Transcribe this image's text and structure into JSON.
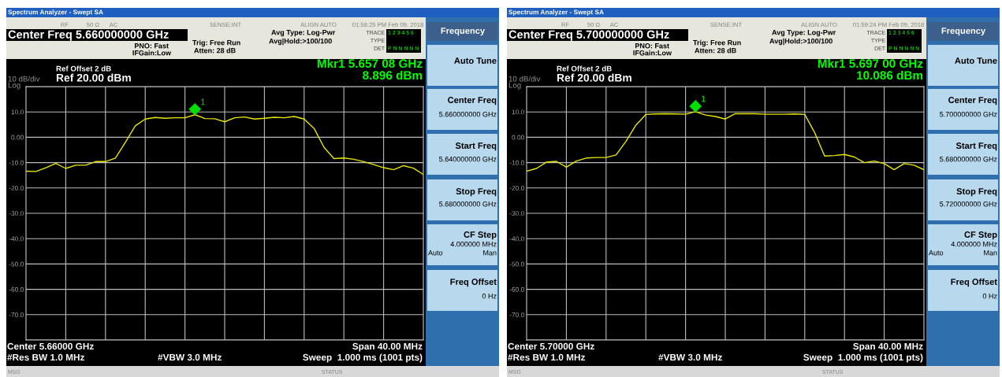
{
  "chart_data": [
    {
      "type": "line",
      "title": "Spectrum Analyzer - Swept SA",
      "categories": [
        null,
        null,
        null,
        null,
        null,
        null,
        null,
        null,
        null,
        null,
        null,
        null,
        null,
        null,
        null,
        null,
        null,
        null,
        null,
        null,
        null,
        null,
        null,
        null,
        null,
        null,
        null,
        null,
        null,
        null,
        null,
        null,
        null,
        null,
        null,
        null,
        null,
        null,
        null,
        null,
        null
      ],
      "ylim": [
        -80,
        20
      ],
      "yticks": [
        {
          "value": 20,
          "label": null
        },
        {
          "value": 10,
          "label": "10.0"
        },
        {
          "value": 0,
          "label": "0.00"
        },
        {
          "value": -10,
          "label": "-10.0"
        },
        {
          "value": -20,
          "label": "-20.0"
        },
        {
          "value": -30,
          "label": "-30.0"
        },
        {
          "value": -40,
          "label": "-40.0"
        },
        {
          "value": -50,
          "label": "-50.0"
        },
        {
          "value": -60,
          "label": "-60.0"
        },
        {
          "value": -70,
          "label": "-70.0"
        },
        {
          "value": -80,
          "label": null
        }
      ],
      "grid": true,
      "tick_labels": "y",
      "series": [
        {
          "color": "#e6e600",
          "values": [
            -13.4,
            -13.5,
            -12.0,
            -10.3,
            -12.3,
            -11.0,
            -11.0,
            -9.6,
            -9.6,
            -8.2,
            -2.0,
            4.5,
            7.2,
            7.8,
            7.5,
            7.7,
            7.7,
            8.9,
            7.4,
            7.3,
            6.1,
            7.7,
            8.0,
            7.2,
            7.5,
            7.9,
            7.7,
            8.2,
            7.2,
            3.5,
            -4.0,
            -8.4,
            -8.2,
            -8.7,
            -9.6,
            -10.8,
            -12.0,
            -12.8,
            -11.2,
            -12.2,
            -14.7
          ]
        }
      ],
      "annotations": [
        "RF",
        "50 Ω",
        "AC",
        "SENSE:INT",
        "ALIGN AUTO",
        "01:58:25 PM Feb 09, 2018",
        "Center Freq 5.660000000 GHz",
        "PNO: Fast",
        "IFGain:Low",
        "Trig: Free Run",
        "Atten: 28 dB",
        "Avg Type: Log-Pwr",
        "Avg|Hold:>100/100",
        "TRACE",
        "1 2 3 4 5 6",
        "TYPE",
        "DET",
        "P N N N N N",
        "Ref Offset 2 dB",
        "Ref 20.00 dBm",
        "10 dB/div",
        "Log",
        "Mkr1 5.657 08 GHz",
        "8.896 dBm",
        "Center 5.66000 GHz",
        "Span 40.00 MHz",
        "#Res BW 1.0 MHz",
        "#VBW 3.0 MHz",
        "Sweep  1.000 ms (1001 pts)",
        "MSG",
        "STATUS",
        "Frequency",
        "Auto Tune",
        "Center Freq",
        "5.660000000 GHz",
        "Start Freq",
        "5.640000000 GHz",
        "Stop Freq",
        "5.680000000 GHz",
        "CF Step",
        "4.000000 MHz",
        "Auto",
        "Man",
        "Freq Offset",
        "0 Hz",
        {
          "text": "1",
          "y": 8.896
        }
      ]
    },
    {
      "type": "line",
      "title": "Spectrum Analyzer - Swept SA",
      "categories": [
        null,
        null,
        null,
        null,
        null,
        null,
        null,
        null,
        null,
        null,
        null,
        null,
        null,
        null,
        null,
        null,
        null,
        null,
        null,
        null,
        null,
        null,
        null,
        null,
        null,
        null,
        null,
        null,
        null,
        null,
        null,
        null,
        null,
        null,
        null,
        null,
        null,
        null,
        null,
        null,
        null
      ],
      "ylim": [
        -80,
        20
      ],
      "yticks": [
        {
          "value": 20,
          "label": null
        },
        {
          "value": 10,
          "label": "10.0"
        },
        {
          "value": 0,
          "label": "0.00"
        },
        {
          "value": -10,
          "label": "-10.0"
        },
        {
          "value": -20,
          "label": "-20.0"
        },
        {
          "value": -30,
          "label": "-30.0"
        },
        {
          "value": -40,
          "label": "-40.0"
        },
        {
          "value": -50,
          "label": "-50.0"
        },
        {
          "value": -60,
          "label": "-60.0"
        },
        {
          "value": -70,
          "label": "-70.0"
        },
        {
          "value": -80,
          "label": null
        }
      ],
      "grid": true,
      "tick_labels": "y",
      "series": [
        {
          "color": "#e6e600",
          "values": [
            -13.4,
            -12.3,
            -9.8,
            -9.5,
            -11.8,
            -9.4,
            -8.2,
            -8.0,
            -8.0,
            -7.0,
            -1.6,
            4.8,
            9.0,
            9.2,
            9.3,
            9.2,
            9.1,
            10.1,
            8.8,
            8.2,
            7.2,
            9.3,
            9.3,
            9.3,
            9.1,
            9.1,
            9.1,
            9.2,
            9.0,
            1.8,
            -7.4,
            -7.2,
            -6.8,
            -7.8,
            -10.0,
            -9.4,
            -10.4,
            -12.8,
            -10.4,
            -11.0,
            -12.8
          ]
        }
      ],
      "annotations": [
        "RF",
        "50 Ω",
        "AC",
        "SENSE:INT",
        "ALIGN AUTO",
        "01:59:24 PM Feb 09, 2018",
        "Center Freq 5.700000000 GHz",
        "PNO: Fast",
        "IFGain:Low",
        "Trig: Free Run",
        "Atten: 28 dB",
        "Avg Type: Log-Pwr",
        "Avg|Hold:>100/100",
        "TRACE",
        "1 2 3 4 5 6",
        "TYPE",
        "DET",
        "P N N N N N",
        "Ref Offset 2 dB",
        "Ref 20.00 dBm",
        "10 dB/div",
        "Log",
        "Mkr1 5.697 00 GHz",
        "10.086 dBm",
        "Center 5.70000 GHz",
        "Span 40.00 MHz",
        "#Res BW 1.0 MHz",
        "#VBW 3.0 MHz",
        "Sweep  1.000 ms (1001 pts)",
        "MSG",
        "STATUS",
        "Frequency",
        "Auto Tune",
        "Center Freq",
        "5.700000000 GHz",
        "Start Freq",
        "5.680000000 GHz",
        "Stop Freq",
        "5.720000000 GHz",
        "CF Step",
        "4.000000 MHz",
        "Auto",
        "Man",
        "Freq Offset",
        "0 Hz",
        {
          "text": "1",
          "y": 10.086
        }
      ]
    }
  ]
}
